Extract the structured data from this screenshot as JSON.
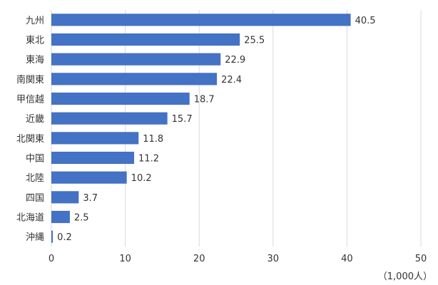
{
  "chart_data": {
    "type": "bar",
    "orientation": "horizontal",
    "categories": [
      "九州",
      "東北",
      "東海",
      "南関東",
      "甲信越",
      "近畿",
      "北関東",
      "中国",
      "北陸",
      "四国",
      "北海道",
      "沖縄"
    ],
    "values": [
      40.5,
      25.5,
      22.9,
      22.4,
      18.7,
      15.7,
      11.8,
      11.2,
      10.2,
      3.7,
      2.5,
      0.2
    ],
    "value_labels": [
      "40.5",
      "25.5",
      "22.9",
      "22.4",
      "18.7",
      "15.7",
      "11.8",
      "11.2",
      "10.2",
      "3.7",
      "2.5",
      "0.2"
    ],
    "xlim": [
      0,
      50
    ],
    "x_ticks": [
      0,
      10,
      20,
      30,
      40,
      50
    ],
    "x_tick_labels": [
      "0",
      "10",
      "20",
      "30",
      "40",
      "50"
    ],
    "unit": "（1,000人）",
    "grid": "vertical",
    "bar_color": "#4472c4",
    "grid_color": "#d9d9d9"
  }
}
